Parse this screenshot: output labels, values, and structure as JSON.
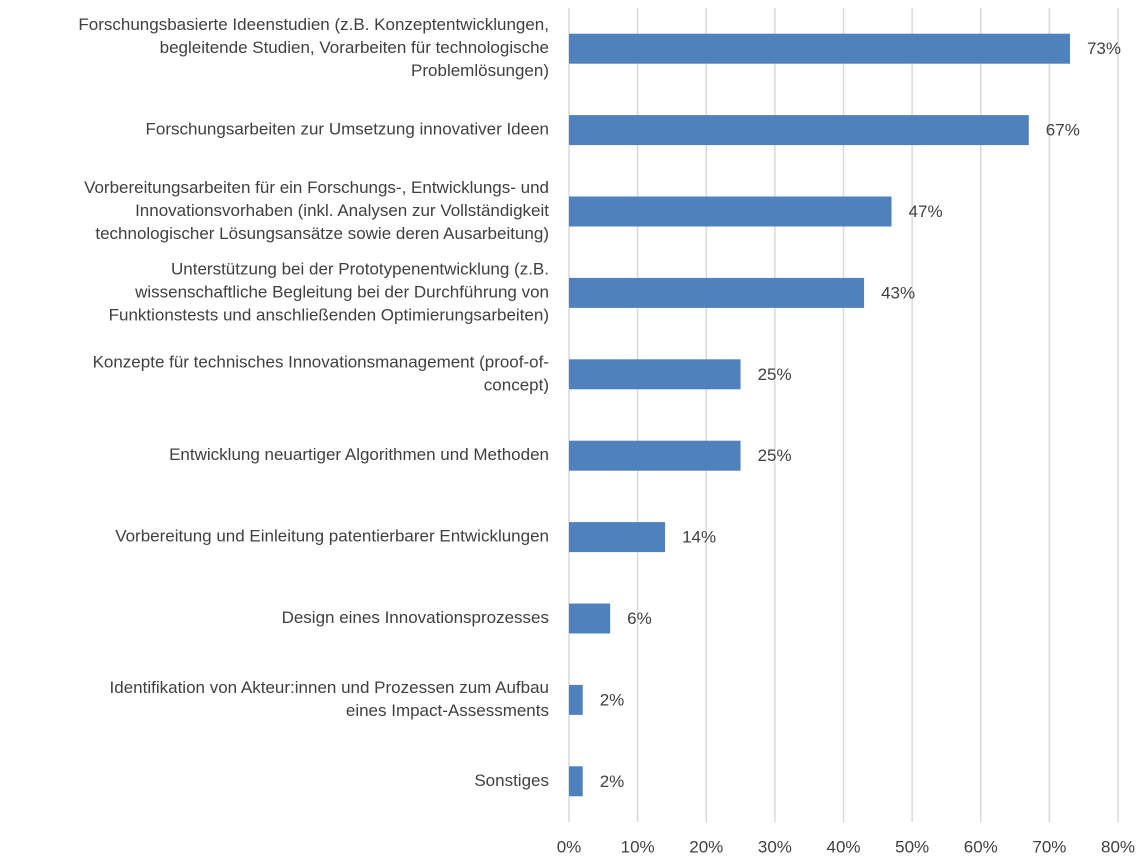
{
  "chart_data": {
    "type": "bar",
    "orientation": "horizontal",
    "categories": [
      [
        "Forschungsbasierte Ideenstudien (z.B. Konzeptentwicklungen,",
        "begleitende Studien, Vorarbeiten für technologische",
        "Problemlösungen)"
      ],
      [
        "Forschungsarbeiten zur Umsetzung innovativer Ideen"
      ],
      [
        "Vorbereitungsarbeiten für ein Forschungs-, Entwicklungs- und",
        "Innovationsvorhaben (inkl. Analysen zur Vollständigkeit",
        "technologischer Lösungsansätze sowie deren Ausarbeitung)"
      ],
      [
        "Unterstützung bei der Prototypenentwicklung (z.B.",
        "wissenschaftliche Begleitung bei der Durchführung von",
        "Funktionstests und anschließenden Optimierungsarbeiten)"
      ],
      [
        "Konzepte für technisches Innovationsmanagement (proof-of-",
        "concept)"
      ],
      [
        "Entwicklung neuartiger Algorithmen und Methoden"
      ],
      [
        "Vorbereitung und Einleitung patentierbarer Entwicklungen"
      ],
      [
        "Design eines Innovationsprozesses"
      ],
      [
        "Identifikation von Akteur:innen und Prozessen zum Aufbau",
        "eines Impact-Assessments"
      ],
      [
        "Sonstiges"
      ]
    ],
    "values": [
      73,
      67,
      47,
      43,
      25,
      25,
      14,
      6,
      2,
      2
    ],
    "value_labels": [
      "73%",
      "67%",
      "47%",
      "43%",
      "25%",
      "25%",
      "14%",
      "6%",
      "2%",
      "2%"
    ],
    "color": "#4f81bd",
    "xlim": [
      0,
      80
    ],
    "xticks": [
      {
        "value": 0,
        "label": "0%"
      },
      {
        "value": 10,
        "label": "10%"
      },
      {
        "value": 20,
        "label": "20%"
      },
      {
        "value": 30,
        "label": "30%"
      },
      {
        "value": 40,
        "label": "40%"
      },
      {
        "value": 50,
        "label": "50%"
      },
      {
        "value": 60,
        "label": "60%"
      },
      {
        "value": 70,
        "label": "70%"
      },
      {
        "value": 80,
        "label": "80%"
      }
    ],
    "grid": true
  }
}
